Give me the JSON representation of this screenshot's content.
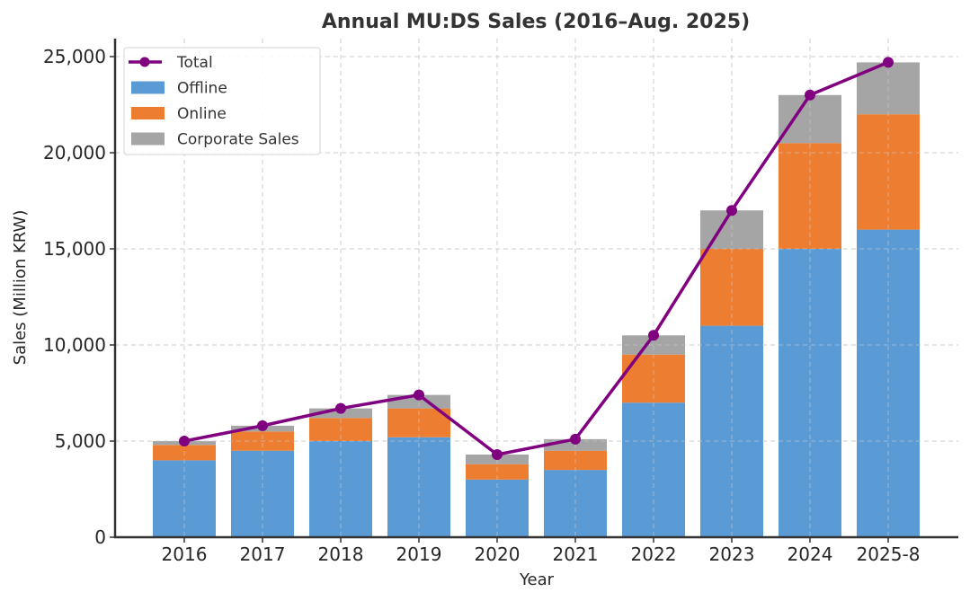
{
  "chart_data": {
    "type": "bar",
    "stacked": true,
    "title": "Annual MU:DS Sales (2016–Aug. 2025)",
    "xlabel": "Year",
    "ylabel": "Sales (Million KRW)",
    "ylim": [
      0,
      25900
    ],
    "yticks": [
      0,
      5000,
      10000,
      15000,
      20000,
      25000
    ],
    "ytick_labels": [
      "0",
      "5,000",
      "10,000",
      "15,000",
      "20,000",
      "25,000"
    ],
    "grid": true,
    "legend_position": "top-left",
    "categories": [
      "2016",
      "2017",
      "2018",
      "2019",
      "2020",
      "2021",
      "2022",
      "2023",
      "2024",
      "2025-8"
    ],
    "series": [
      {
        "name": "Offline",
        "type": "bar",
        "color": "#5b9bd5",
        "values": [
          4000,
          4500,
          5000,
          5200,
          3000,
          3500,
          7000,
          11000,
          15000,
          16000
        ]
      },
      {
        "name": "Online",
        "type": "bar",
        "color": "#ed7d31",
        "values": [
          800,
          1000,
          1200,
          1500,
          800,
          1000,
          2500,
          4000,
          5500,
          6000
        ]
      },
      {
        "name": "Corporate Sales",
        "type": "bar",
        "color": "#a5a5a5",
        "values": [
          200,
          300,
          500,
          700,
          500,
          600,
          1000,
          2000,
          2500,
          2700
        ]
      },
      {
        "name": "Total",
        "type": "line",
        "color": "#800080",
        "values": [
          5000,
          5800,
          6700,
          7400,
          4300,
          5100,
          10500,
          17000,
          23000,
          24700
        ]
      }
    ],
    "legend": [
      "Total",
      "Offline",
      "Online",
      "Corporate Sales"
    ]
  }
}
